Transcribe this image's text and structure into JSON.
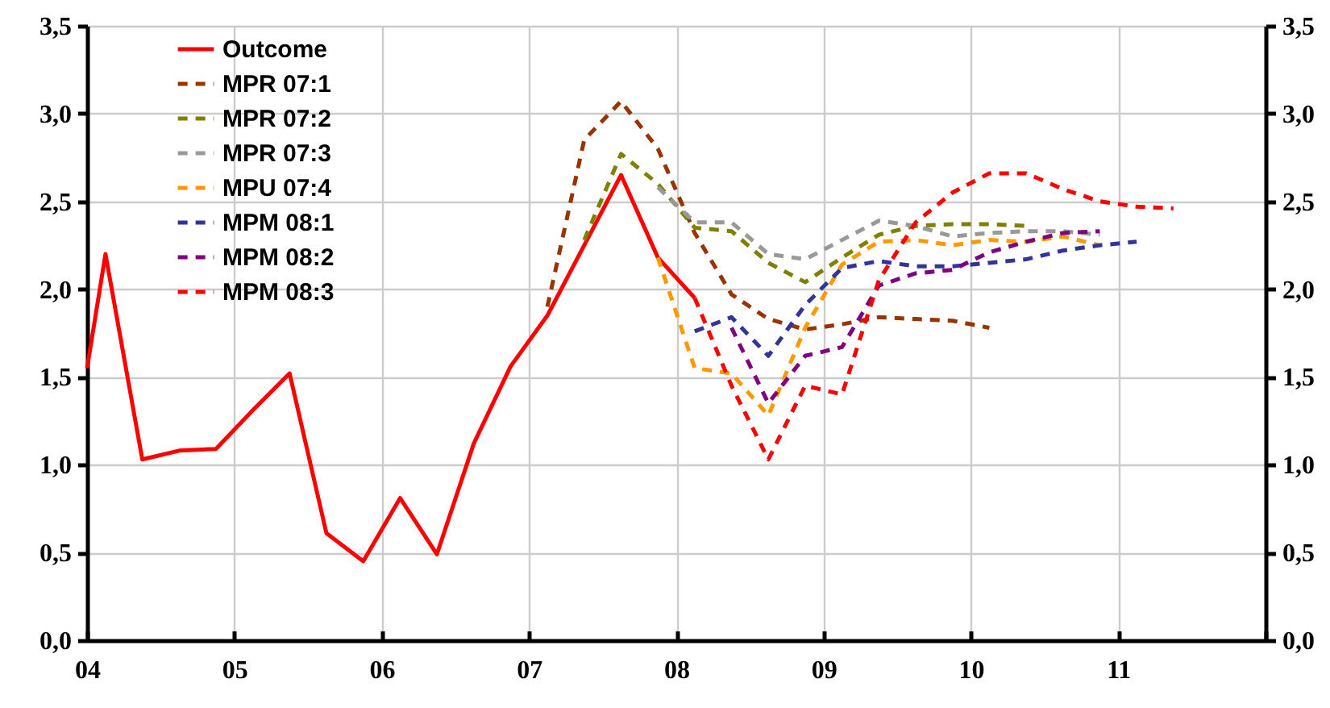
{
  "chart_data": {
    "type": "line",
    "grid": true,
    "legend": "top left",
    "xlim": [
      2004,
      2012
    ],
    "xticks": [
      {
        "value": 2004,
        "label": "04"
      },
      {
        "value": 2005,
        "label": "05"
      },
      {
        "value": 2006,
        "label": "06"
      },
      {
        "value": 2007,
        "label": "07"
      },
      {
        "value": 2008,
        "label": "08"
      },
      {
        "value": 2009,
        "label": "09"
      },
      {
        "value": 2010,
        "label": "10"
      },
      {
        "value": 2011,
        "label": "11"
      },
      {
        "value": 2012,
        "label": null
      }
    ],
    "ylim": [
      0,
      3.5
    ],
    "yticks": [
      {
        "value": 0,
        "label": "0,0"
      },
      {
        "value": 0.5,
        "label": "0,5"
      },
      {
        "value": 1,
        "label": "1,0"
      },
      {
        "value": 1.5,
        "label": "1,5"
      },
      {
        "value": 2,
        "label": "2,0"
      },
      {
        "value": 2.5,
        "label": "2,5"
      },
      {
        "value": 3,
        "label": "3,0"
      },
      {
        "value": 3.5,
        "label": "3,5"
      }
    ],
    "y2lim": [
      0,
      3.5
    ],
    "y2ticks": [
      {
        "value": 0,
        "label": "0,0"
      },
      {
        "value": 0.5,
        "label": "0,5"
      },
      {
        "value": 1,
        "label": "1,0"
      },
      {
        "value": 1.5,
        "label": "1,5"
      },
      {
        "value": 2,
        "label": "2,0"
      },
      {
        "value": 2.5,
        "label": "2,5"
      },
      {
        "value": 3,
        "label": "3,0"
      },
      {
        "value": 3.5,
        "label": "3,5"
      }
    ],
    "series": [
      {
        "name": "Outcome",
        "color": "#ff0000",
        "line_style": "solid",
        "x": [
          2004,
          2004.125,
          2004.375,
          2004.625,
          2004.875,
          2005.125,
          2005.375,
          2005.625,
          2005.875,
          2006.125,
          2006.375,
          2006.625,
          2006.875,
          2007.125,
          2007.375,
          2007.625,
          2007.875,
          2008.125
        ],
        "values": [
          1.55,
          2.2,
          1.03,
          1.08,
          1.09,
          1.31,
          1.52,
          0.61,
          0.45,
          0.81,
          0.49,
          1.12,
          1.56,
          1.85,
          2.25,
          2.65,
          2.18,
          1.95
        ]
      },
      {
        "name": "MPR 07:1",
        "color": "#993300",
        "line_style": "dashed",
        "x": [
          2007.125,
          2007.375,
          2007.625,
          2007.875,
          2008.125,
          2008.375,
          2008.625,
          2008.875,
          2009.125,
          2009.375,
          2009.625,
          2009.875,
          2010.125
        ],
        "values": [
          1.9,
          2.85,
          3.07,
          2.8,
          2.32,
          1.97,
          1.83,
          1.77,
          1.8,
          1.84,
          1.83,
          1.82,
          1.78
        ]
      },
      {
        "name": "MPR 07:2",
        "color": "#808000",
        "line_style": "dashed",
        "x": [
          2007.375,
          2007.625,
          2007.875,
          2008.125,
          2008.375,
          2008.625,
          2008.875,
          2009.125,
          2009.375,
          2009.625,
          2009.875,
          2010.125,
          2010.375
        ],
        "values": [
          2.28,
          2.77,
          2.6,
          2.35,
          2.33,
          2.15,
          2.04,
          2.18,
          2.31,
          2.36,
          2.37,
          2.37,
          2.36
        ]
      },
      {
        "name": "MPR 07:3",
        "color": "#999999",
        "line_style": "dashed",
        "x": [
          2007.875,
          2008.125,
          2008.375,
          2008.625,
          2008.875,
          2009.125,
          2009.375,
          2009.625,
          2009.875,
          2010.125,
          2010.375,
          2010.625,
          2010.875
        ],
        "values": [
          2.58,
          2.38,
          2.38,
          2.2,
          2.17,
          2.28,
          2.39,
          2.36,
          2.3,
          2.32,
          2.33,
          2.33,
          2.31
        ]
      },
      {
        "name": "MPU 07:4",
        "color": "#ff9900",
        "line_style": "dashed",
        "x": [
          2007.875,
          2008.125,
          2008.375,
          2008.625,
          2008.875,
          2009.125,
          2009.375,
          2009.625,
          2009.875,
          2010.125,
          2010.375,
          2010.625,
          2010.875
        ],
        "values": [
          2.18,
          1.55,
          1.52,
          1.28,
          1.78,
          2.14,
          2.27,
          2.28,
          2.25,
          2.28,
          2.27,
          2.3,
          2.25
        ]
      },
      {
        "name": "MPM  08:1",
        "color": "#333399",
        "line_style": "dashed",
        "x": [
          2008.125,
          2008.375,
          2008.625,
          2008.875,
          2009.125,
          2009.375,
          2009.625,
          2009.875,
          2010.125,
          2010.375,
          2010.625,
          2010.875,
          2011.125
        ],
        "values": [
          1.76,
          1.84,
          1.62,
          1.91,
          2.12,
          2.16,
          2.13,
          2.13,
          2.15,
          2.17,
          2.22,
          2.25,
          2.27
        ]
      },
      {
        "name": "MPM  08:2",
        "color": "#800080",
        "line_style": "dashed",
        "x": [
          2008.375,
          2008.625,
          2008.875,
          2009.125,
          2009.375,
          2009.625,
          2009.875,
          2010.125,
          2010.375,
          2010.625,
          2010.875
        ],
        "values": [
          1.78,
          1.35,
          1.62,
          1.67,
          2.02,
          2.09,
          2.11,
          2.21,
          2.27,
          2.32,
          2.33
        ]
      },
      {
        "name": "MPM  08:3",
        "color": "#ff0000",
        "line_style": "dashed",
        "x": [
          2008.125,
          2008.375,
          2008.625,
          2008.875,
          2009.125,
          2009.375,
          2009.625,
          2009.875,
          2010.125,
          2010.375,
          2010.625,
          2010.875,
          2011.125,
          2011.375
        ],
        "values": [
          1.95,
          1.45,
          1.03,
          1.45,
          1.4,
          2.05,
          2.38,
          2.55,
          2.66,
          2.66,
          2.57,
          2.5,
          2.47,
          2.46
        ]
      }
    ]
  }
}
